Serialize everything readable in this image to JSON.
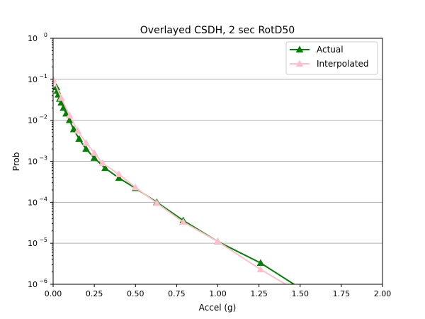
{
  "chart_data": {
    "type": "line",
    "title": "Overlayed CSDH, 2 sec RotD50",
    "xlabel": "Accel (g)",
    "ylabel": "Prob",
    "xlim": [
      0,
      2.0
    ],
    "ylim": [
      1e-06,
      1
    ],
    "yscale": "log",
    "grid": "y-major",
    "legend_position": "top-right",
    "xticks": [
      "0.00",
      "0.25",
      "0.50",
      "0.75",
      "1.00",
      "1.25",
      "1.50",
      "1.75",
      "2.00"
    ],
    "xtick_values": [
      0,
      0.25,
      0.5,
      0.75,
      1.0,
      1.25,
      1.5,
      1.75,
      2.0
    ],
    "yticks": [
      {
        "base": "10",
        "exp": "0"
      },
      {
        "base": "10",
        "exp": "−1"
      },
      {
        "base": "10",
        "exp": "−2"
      },
      {
        "base": "10",
        "exp": "−3"
      },
      {
        "base": "10",
        "exp": "−4"
      },
      {
        "base": "10",
        "exp": "−5"
      },
      {
        "base": "10",
        "exp": "−6"
      }
    ],
    "series": [
      {
        "name": "Actual",
        "color": "#008000",
        "x": [
          0.02,
          0.025,
          0.0316,
          0.04,
          0.05,
          0.063,
          0.079,
          0.1,
          0.125,
          0.158,
          0.2,
          0.25,
          0.316,
          0.4,
          0.5,
          0.63,
          0.79,
          1.0,
          1.26,
          1.58
        ],
        "y": [
          0.064,
          0.052,
          0.042,
          0.033,
          0.027,
          0.02,
          0.0145,
          0.01,
          0.006,
          0.0035,
          0.002,
          0.0012,
          0.00068,
          0.00039,
          0.00022,
          0.0001,
          3.6e-05,
          1.1e-05,
          3.3e-06,
          5e-07
        ]
      },
      {
        "name": "Interpolated",
        "color": "#ffc0cb",
        "x": [
          0,
          0.05,
          0.1,
          0.15,
          0.2,
          0.25,
          0.3,
          0.4,
          0.5,
          0.63,
          0.79,
          1.0,
          1.26,
          1.58
        ],
        "y": [
          0.1,
          0.035,
          0.013,
          0.0055,
          0.0028,
          0.0016,
          0.0009,
          0.00048,
          0.00023,
          9.5e-05,
          3.3e-05,
          1.1e-05,
          2.3e-06,
          4e-07
        ]
      }
    ]
  }
}
